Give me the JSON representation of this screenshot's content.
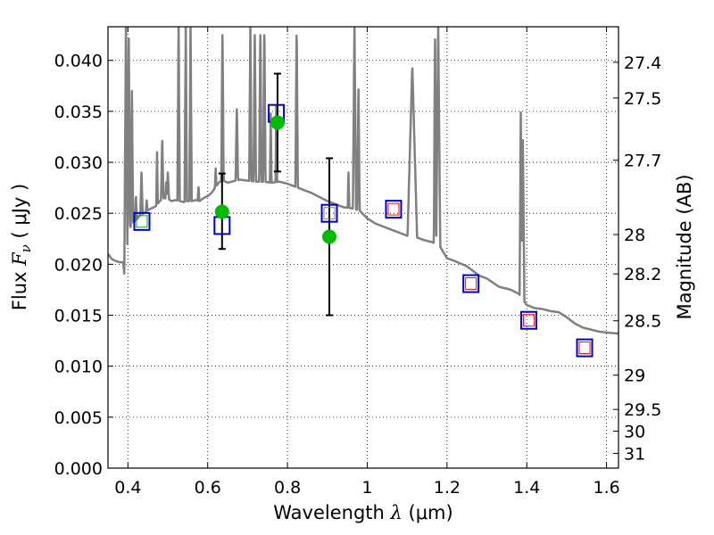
{
  "chart_data": {
    "type": "line",
    "xlabel": {
      "prefix": "Wavelength  ",
      "symbol": "λ",
      "unit": " (μm)"
    },
    "ylabel": {
      "prefix": "Flux  ",
      "symbol": "F",
      "sub": "ν",
      "unit": "  ( μJy )"
    },
    "ylabel_right": "Magnitude (AB)",
    "xlim": [
      0.35,
      1.63
    ],
    "ylim": [
      0.0,
      0.0433
    ],
    "grid": true,
    "x_ticks": [
      {
        "value": 0.4,
        "label": "0.4"
      },
      {
        "value": 0.6,
        "label": "0.6"
      },
      {
        "value": 0.8,
        "label": "0.8"
      },
      {
        "value": 1.0,
        "label": "1"
      },
      {
        "value": 1.2,
        "label": "1.2"
      },
      {
        "value": 1.4,
        "label": "1.4"
      },
      {
        "value": 1.6,
        "label": "1.6"
      }
    ],
    "y_ticks": [
      {
        "value": 0.0,
        "label": "0.000"
      },
      {
        "value": 0.005,
        "label": "0.005"
      },
      {
        "value": 0.01,
        "label": "0.010"
      },
      {
        "value": 0.015,
        "label": "0.015"
      },
      {
        "value": 0.02,
        "label": "0.020"
      },
      {
        "value": 0.025,
        "label": "0.025"
      },
      {
        "value": 0.03,
        "label": "0.030"
      },
      {
        "value": 0.035,
        "label": "0.035"
      },
      {
        "value": 0.04,
        "label": "0.040"
      }
    ],
    "mag_ticks": [
      {
        "value": 27.4,
        "label": "27.4"
      },
      {
        "value": 27.5,
        "label": "27.5"
      },
      {
        "value": 27.7,
        "label": "27.7"
      },
      {
        "value": 28.0,
        "label": "28"
      },
      {
        "value": 28.2,
        "label": "28.2"
      },
      {
        "value": 28.5,
        "label": "28.5"
      },
      {
        "value": 29.0,
        "label": "29"
      },
      {
        "value": 29.5,
        "label": "29.5"
      },
      {
        "value": 30.0,
        "label": "30"
      },
      {
        "value": 31.0,
        "label": "31"
      }
    ],
    "colors": {
      "sed": "#808080",
      "observed": "#00bb00",
      "model": "#0000cc",
      "model_red": "#ff0000",
      "model_green": "#00aa00",
      "errorbar": "#000000"
    },
    "sed_continuum": [
      [
        0.35,
        0.021
      ],
      [
        0.36,
        0.0205
      ],
      [
        0.37,
        0.0203
      ],
      [
        0.38,
        0.0202
      ],
      [
        0.388,
        0.0202
      ],
      [
        0.393,
        0.0182
      ],
      [
        0.397,
        0.021
      ],
      [
        0.402,
        0.0232
      ],
      [
        0.41,
        0.024
      ],
      [
        0.42,
        0.0243
      ],
      [
        0.43,
        0.0248
      ],
      [
        0.44,
        0.025
      ],
      [
        0.45,
        0.0253
      ],
      [
        0.46,
        0.0255
      ],
      [
        0.47,
        0.0257
      ],
      [
        0.48,
        0.0262
      ],
      [
        0.49,
        0.0265
      ],
      [
        0.5,
        0.0264
      ],
      [
        0.51,
        0.0262
      ],
      [
        0.52,
        0.0263
      ],
      [
        0.53,
        0.0262
      ],
      [
        0.54,
        0.0261
      ],
      [
        0.55,
        0.0262
      ],
      [
        0.56,
        0.0262
      ],
      [
        0.57,
        0.0263
      ],
      [
        0.58,
        0.0262
      ],
      [
        0.59,
        0.0265
      ],
      [
        0.6,
        0.0267
      ],
      [
        0.61,
        0.027
      ],
      [
        0.62,
        0.0276
      ],
      [
        0.63,
        0.0281
      ],
      [
        0.64,
        0.0282
      ],
      [
        0.65,
        0.028
      ],
      [
        0.66,
        0.0281
      ],
      [
        0.68,
        0.0283
      ],
      [
        0.7,
        0.0282
      ],
      [
        0.72,
        0.0281
      ],
      [
        0.74,
        0.0281
      ],
      [
        0.76,
        0.028
      ],
      [
        0.78,
        0.0281
      ],
      [
        0.8,
        0.0279
      ],
      [
        0.82,
        0.0276
      ],
      [
        0.84,
        0.0273
      ],
      [
        0.86,
        0.027
      ],
      [
        0.88,
        0.0266
      ],
      [
        0.9,
        0.0262
      ],
      [
        0.92,
        0.0259
      ],
      [
        0.94,
        0.0256
      ],
      [
        0.96,
        0.0255
      ],
      [
        0.98,
        0.0253
      ],
      [
        1.0,
        0.0245
      ],
      [
        1.02,
        0.024
      ],
      [
        1.04,
        0.0237
      ],
      [
        1.06,
        0.0234
      ],
      [
        1.08,
        0.0231
      ],
      [
        1.1,
        0.0228
      ],
      [
        1.12,
        0.0227
      ],
      [
        1.14,
        0.0224
      ],
      [
        1.16,
        0.0222
      ],
      [
        1.18,
        0.0219
      ],
      [
        1.2,
        0.0206
      ],
      [
        1.22,
        0.0203
      ],
      [
        1.25,
        0.0198
      ],
      [
        1.28,
        0.0189
      ],
      [
        1.3,
        0.0186
      ],
      [
        1.33,
        0.0178
      ],
      [
        1.36,
        0.0175
      ],
      [
        1.38,
        0.0171
      ],
      [
        1.4,
        0.016
      ],
      [
        1.42,
        0.0157
      ],
      [
        1.44,
        0.0156
      ],
      [
        1.46,
        0.0154
      ],
      [
        1.48,
        0.0153
      ],
      [
        1.5,
        0.0148
      ],
      [
        1.52,
        0.0142
      ],
      [
        1.54,
        0.0138
      ],
      [
        1.56,
        0.0136
      ],
      [
        1.58,
        0.0134
      ],
      [
        1.6,
        0.0133
      ],
      [
        1.63,
        0.0132
      ]
    ],
    "sed_lines": [
      {
        "x": 0.395,
        "w": 0.004,
        "peak": 0.0435
      },
      {
        "x": 0.402,
        "w": 0.003,
        "peak": 0.0435
      },
      {
        "x": 0.405,
        "w": 0.002,
        "peak": 0.024
      },
      {
        "x": 0.41,
        "w": 0.003,
        "peak": 0.037
      },
      {
        "x": 0.42,
        "w": 0.0025,
        "peak": 0.0268
      },
      {
        "x": 0.434,
        "w": 0.003,
        "peak": 0.029
      },
      {
        "x": 0.447,
        "w": 0.002,
        "peak": 0.0264
      },
      {
        "x": 0.473,
        "w": 0.002,
        "peak": 0.031
      },
      {
        "x": 0.486,
        "w": 0.003,
        "peak": 0.0325
      },
      {
        "x": 0.496,
        "w": 0.002,
        "peak": 0.0282
      },
      {
        "x": 0.5,
        "w": 0.003,
        "peak": 0.029
      },
      {
        "x": 0.527,
        "w": 0.003,
        "peak": 0.0435
      },
      {
        "x": 0.545,
        "w": 0.003,
        "peak": 0.0435
      },
      {
        "x": 0.557,
        "w": 0.003,
        "peak": 0.0435
      },
      {
        "x": 0.577,
        "w": 0.002,
        "peak": 0.0277
      },
      {
        "x": 0.62,
        "w": 0.002,
        "peak": 0.0294
      },
      {
        "x": 0.637,
        "w": 0.003,
        "peak": 0.0435
      },
      {
        "x": 0.673,
        "w": 0.003,
        "peak": 0.0357
      },
      {
        "x": 0.707,
        "w": 0.003,
        "peak": 0.0435
      },
      {
        "x": 0.718,
        "w": 0.003,
        "peak": 0.0435
      },
      {
        "x": 0.732,
        "w": 0.003,
        "peak": 0.0435
      },
      {
        "x": 0.742,
        "w": 0.003,
        "peak": 0.0435
      },
      {
        "x": 0.758,
        "w": 0.002,
        "peak": 0.0348
      },
      {
        "x": 0.772,
        "w": 0.002,
        "peak": 0.0363
      },
      {
        "x": 0.823,
        "w": 0.003,
        "peak": 0.0435
      },
      {
        "x": 0.903,
        "w": 0.002,
        "peak": 0.025
      },
      {
        "x": 0.913,
        "w": 0.002,
        "peak": 0.0253
      },
      {
        "x": 0.953,
        "w": 0.002,
        "peak": 0.029
      },
      {
        "x": 0.968,
        "w": 0.004,
        "peak": 0.0435
      },
      {
        "x": 0.978,
        "w": 0.003,
        "peak": 0.038
      },
      {
        "x": 1.113,
        "w": 0.012,
        "peak": 0.0395
      },
      {
        "x": 1.17,
        "w": 0.003,
        "peak": 0.0435
      },
      {
        "x": 1.178,
        "w": 0.005,
        "peak": 0.0435
      },
      {
        "x": 1.385,
        "w": 0.003,
        "peak": 0.0349
      },
      {
        "x": 1.39,
        "w": 0.004,
        "peak": 0.033
      }
    ],
    "observed": [
      {
        "x": 0.636,
        "y": 0.02515,
        "err_low": 0.0215,
        "err_high": 0.0289
      },
      {
        "x": 0.775,
        "y": 0.0339,
        "err_low": 0.0291,
        "err_high": 0.0387
      },
      {
        "x": 0.905,
        "y": 0.0227,
        "err_low": 0.015,
        "err_high": 0.0304
      }
    ],
    "model_bands": [
      {
        "x": 0.435,
        "y": 0.0242,
        "inner": "green"
      },
      {
        "x": 0.636,
        "y": 0.0238,
        "inner": "none"
      },
      {
        "x": 0.772,
        "y": 0.0348,
        "inner": "none"
      },
      {
        "x": 0.905,
        "y": 0.025,
        "inner": "gray"
      },
      {
        "x": 1.066,
        "y": 0.0254,
        "inner": "red"
      },
      {
        "x": 1.26,
        "y": 0.0181,
        "inner": "red"
      },
      {
        "x": 1.405,
        "y": 0.0145,
        "inner": "red"
      },
      {
        "x": 1.545,
        "y": 0.0118,
        "inner": "red"
      }
    ]
  }
}
